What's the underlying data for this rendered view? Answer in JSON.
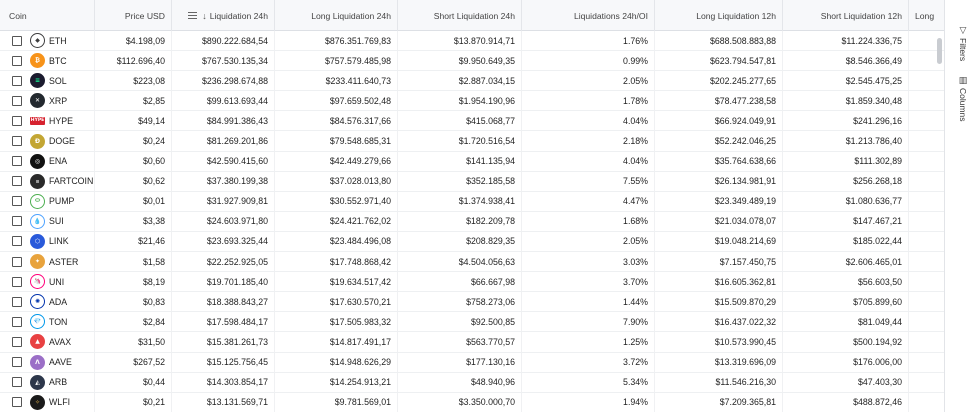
{
  "columns": {
    "coin": "Coin",
    "price": "Price USD",
    "liq24": "Liquidation 24h",
    "long24": "Long Liquidation 24h",
    "short24": "Short Liquidation 24h",
    "oi": "Liquidations 24h/OI",
    "long12": "Long Liquidation 12h",
    "short12": "Short Liquidation 12h",
    "more": "Long"
  },
  "sidebar": {
    "filters": "Filters",
    "columns": "Columns"
  },
  "rows": [
    {
      "symbol": "ETH",
      "price": "$4.198,09",
      "liq24": "$890.222.684,54",
      "long24": "$876.351.769,83",
      "short24": "$13.870.914,71",
      "oi": "1.76%",
      "long12": "$688.508.883,88",
      "short12": "$11.224.336,75",
      "logo_color": "#ffffff",
      "logo_fg": "#3c3c3d",
      "logo_glyph": "◆"
    },
    {
      "symbol": "BTC",
      "price": "$112.696,40",
      "liq24": "$767.530.135,34",
      "long24": "$757.579.485,98",
      "short24": "$9.950.649,35",
      "oi": "0.99%",
      "long12": "$623.794.547,81",
      "short12": "$8.546.366,49",
      "logo_color": "#f7931a",
      "logo_fg": "#ffffff",
      "logo_glyph": "₿"
    },
    {
      "symbol": "SOL",
      "price": "$223,08",
      "liq24": "$236.298.674,88",
      "long24": "$233.411.640,73",
      "short24": "$2.887.034,15",
      "oi": "2.05%",
      "long12": "$202.245.277,65",
      "short12": "$2.545.475,25",
      "logo_color": "#1b1b2f",
      "logo_fg": "#14f195",
      "logo_glyph": "≡"
    },
    {
      "symbol": "XRP",
      "price": "$2,85",
      "liq24": "$99.613.693,44",
      "long24": "$97.659.502,48",
      "short24": "$1.954.190,96",
      "oi": "1.78%",
      "long12": "$78.477.238,58",
      "short12": "$1.859.340,48",
      "logo_color": "#23292f",
      "logo_fg": "#ffffff",
      "logo_glyph": "✕"
    },
    {
      "symbol": "HYPE",
      "price": "$49,14",
      "liq24": "$84.991.386,43",
      "long24": "$84.576.317,66",
      "short24": "$415.068,77",
      "oi": "4.04%",
      "long12": "$66.924.049,91",
      "short12": "$241.296,16",
      "logo_color": "#d6222f",
      "logo_fg": "#ffffff",
      "logo_glyph": "HYPE"
    },
    {
      "symbol": "DOGE",
      "price": "$0,24",
      "liq24": "$81.269.201,86",
      "long24": "$79.548.685,31",
      "short24": "$1.720.516,54",
      "oi": "2.18%",
      "long12": "$52.242.046,25",
      "short12": "$1.213.786,40",
      "logo_color": "#c3a634",
      "logo_fg": "#ffffff",
      "logo_glyph": "Ð"
    },
    {
      "symbol": "ENA",
      "price": "$0,60",
      "liq24": "$42.590.415,60",
      "long24": "$42.449.279,66",
      "short24": "$141.135,94",
      "oi": "4.04%",
      "long12": "$35.764.638,66",
      "short12": "$111.302,89",
      "logo_color": "#111111",
      "logo_fg": "#ffffff",
      "logo_glyph": "◎"
    },
    {
      "symbol": "FARTCOIN",
      "price": "$0,62",
      "liq24": "$37.380.199,38",
      "long24": "$37.028.013,80",
      "short24": "$352.185,58",
      "oi": "7.55%",
      "long12": "$26.134.981,91",
      "short12": "$256.268,18",
      "logo_color": "#2a2a2a",
      "logo_fg": "#9a9a9a",
      "logo_glyph": "▪"
    },
    {
      "symbol": "PUMP",
      "price": "$0,01",
      "liq24": "$31.927.909,81",
      "long24": "$30.552.971,40",
      "short24": "$1.374.938,41",
      "oi": "4.47%",
      "long12": "$23.349.489,19",
      "short12": "$1.080.636,77",
      "logo_color": "#ffffff",
      "logo_fg": "#4caf50",
      "logo_glyph": "⬭"
    },
    {
      "symbol": "SUI",
      "price": "$3,38",
      "liq24": "$24.603.971,80",
      "long24": "$24.421.762,02",
      "short24": "$182.209,78",
      "oi": "1.68%",
      "long12": "$21.034.078,07",
      "short12": "$147.467,21",
      "logo_color": "#ffffff",
      "logo_fg": "#4da2ff",
      "logo_glyph": "💧"
    },
    {
      "symbol": "LINK",
      "price": "$21,46",
      "liq24": "$23.693.325,44",
      "long24": "$23.484.496,08",
      "short24": "$208.829,35",
      "oi": "2.05%",
      "long12": "$19.048.214,69",
      "short12": "$185.022,44",
      "logo_color": "#2a5ada",
      "logo_fg": "#ffffff",
      "logo_glyph": "⬡"
    },
    {
      "symbol": "ASTER",
      "price": "$1,58",
      "liq24": "$22.252.925,05",
      "long24": "$17.748.868,42",
      "short24": "$4.504.056,63",
      "oi": "3.03%",
      "long12": "$7.157.450,75",
      "short12": "$2.606.465,01",
      "logo_color": "#e8a33d",
      "logo_fg": "#ffffff",
      "logo_glyph": "✦"
    },
    {
      "symbol": "UNI",
      "price": "$8,19",
      "liq24": "$19.701.185,40",
      "long24": "$19.634.517,42",
      "short24": "$66.667,98",
      "oi": "3.70%",
      "long12": "$16.605.362,81",
      "short12": "$56.603,50",
      "logo_color": "#ffffff",
      "logo_fg": "#ff007a",
      "logo_glyph": "🦄"
    },
    {
      "symbol": "ADA",
      "price": "$0,83",
      "liq24": "$18.388.843,27",
      "long24": "$17.630.570,21",
      "short24": "$758.273,06",
      "oi": "1.44%",
      "long12": "$15.509.870,29",
      "short12": "$705.899,60",
      "logo_color": "#ffffff",
      "logo_fg": "#0033ad",
      "logo_glyph": "✺"
    },
    {
      "symbol": "TON",
      "price": "$2,84",
      "liq24": "$17.598.484,17",
      "long24": "$17.505.983,32",
      "short24": "$92.500,85",
      "oi": "7.90%",
      "long12": "$16.437.022,32",
      "short12": "$81.049,44",
      "logo_color": "#ffffff",
      "logo_fg": "#0098ea",
      "logo_glyph": "💎"
    },
    {
      "symbol": "AVAX",
      "price": "$31,50",
      "liq24": "$15.381.261,73",
      "long24": "$14.817.491,17",
      "short24": "$563.770,57",
      "oi": "1.25%",
      "long12": "$10.573.990,45",
      "short12": "$500.194,92",
      "logo_color": "#e84142",
      "logo_fg": "#ffffff",
      "logo_glyph": "▲"
    },
    {
      "symbol": "AAVE",
      "price": "$267,52",
      "liq24": "$15.125.756,45",
      "long24": "$14.948.626,29",
      "short24": "$177.130,16",
      "oi": "3.72%",
      "long12": "$13.319.696,09",
      "short12": "$176.006,00",
      "logo_color": "#9b6fc7",
      "logo_fg": "#ffffff",
      "logo_glyph": "Λ"
    },
    {
      "symbol": "ARB",
      "price": "$0,44",
      "liq24": "$14.303.854,17",
      "long24": "$14.254.913,21",
      "short24": "$48.940,96",
      "oi": "5.34%",
      "long12": "$11.546.216,30",
      "short12": "$47.403,30",
      "logo_color": "#2d374b",
      "logo_fg": "#ffffff",
      "logo_glyph": "◭"
    },
    {
      "symbol": "WLFI",
      "price": "$0,21",
      "liq24": "$13.131.569,71",
      "long24": "$9.781.569,01",
      "short24": "$3.350.000,70",
      "oi": "1.94%",
      "long12": "$7.209.365,81",
      "short12": "$488.872,46",
      "logo_color": "#1a1a1a",
      "logo_fg": "#d4a84b",
      "logo_glyph": "✧"
    }
  ]
}
